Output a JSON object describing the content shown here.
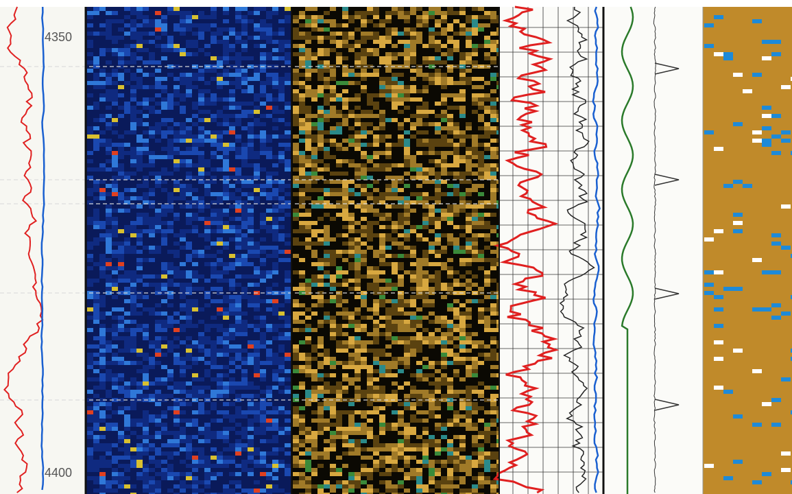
{
  "depth_labels": {
    "top": "4350",
    "bottom": "4400"
  }
}
